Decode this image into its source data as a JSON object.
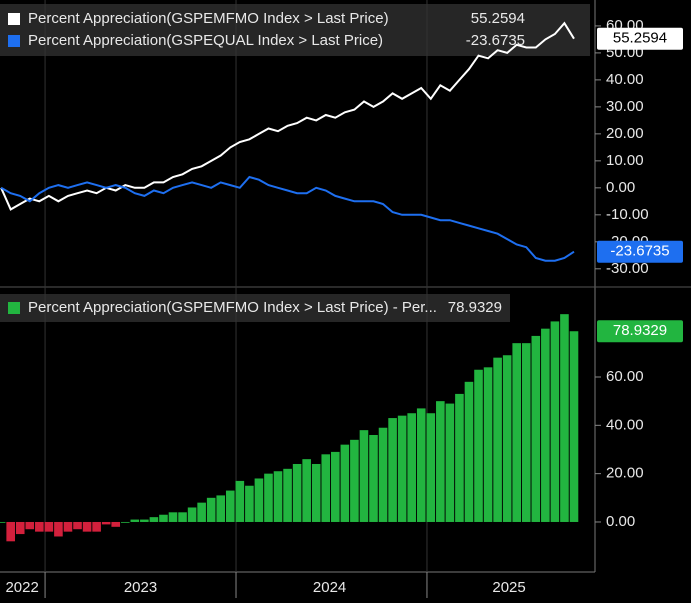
{
  "chart_data": [
    {
      "type": "line",
      "x": [
        2022.77,
        2022.82,
        2022.87,
        2022.92,
        2022.97,
        2023.02,
        2023.07,
        2023.12,
        2023.17,
        2023.22,
        2023.27,
        2023.32,
        2023.37,
        2023.42,
        2023.47,
        2023.52,
        2023.57,
        2023.62,
        2023.67,
        2023.72,
        2023.77,
        2023.82,
        2023.87,
        2023.92,
        2023.97,
        2024.02,
        2024.07,
        2024.12,
        2024.17,
        2024.22,
        2024.27,
        2024.32,
        2024.37,
        2024.42,
        2024.47,
        2024.52,
        2024.57,
        2024.62,
        2024.67,
        2024.72,
        2024.77,
        2024.82,
        2024.87,
        2024.92,
        2024.97,
        2025.02,
        2025.07,
        2025.12,
        2025.17,
        2025.22,
        2025.27,
        2025.32,
        2025.37,
        2025.42,
        2025.47,
        2025.52,
        2025.57,
        2025.62,
        2025.67,
        2025.72,
        2025.77
      ],
      "xlim": [
        2022.764,
        2025.88
      ],
      "xticks": [
        2023,
        2024,
        2025
      ],
      "xlabels": [
        {
          "value": 2022.88,
          "label": "2022"
        },
        {
          "value": 2023.5,
          "label": "2023"
        },
        {
          "value": 2024.49,
          "label": "2024"
        },
        {
          "value": 2025.43,
          "label": "2025"
        }
      ],
      "ylim": [
        -36,
        69.6
      ],
      "yticks": [
        {
          "value": 60,
          "label": "60.00"
        },
        {
          "value": 50,
          "label": "50.00"
        },
        {
          "value": 40,
          "label": "40.00"
        },
        {
          "value": 30,
          "label": "30.00"
        },
        {
          "value": 20,
          "label": "20.00"
        },
        {
          "value": 10,
          "label": "10.00"
        },
        {
          "value": 0,
          "label": "0.00"
        },
        {
          "value": -10,
          "label": "-10.00"
        },
        {
          "value": -20,
          "label": "-20.00"
        },
        {
          "value": -30,
          "label": "-30.00"
        }
      ],
      "series": [
        {
          "name": "Percent Appreciation(GSPEMFMO Index > Last Price)",
          "color": "#ffffff",
          "values": [
            0,
            -8,
            -6,
            -4,
            -5,
            -3,
            -5,
            -3,
            -2,
            -1,
            -2,
            0,
            -1,
            1,
            0,
            0,
            2,
            2,
            4,
            5,
            7,
            8,
            10,
            12,
            15,
            17,
            18,
            20,
            22,
            21,
            23,
            24,
            26,
            25,
            27,
            26,
            28,
            29,
            32,
            30,
            32,
            35,
            33,
            35,
            37,
            33,
            38,
            36,
            40,
            44,
            49,
            48,
            51,
            50,
            53,
            52,
            52,
            55,
            57,
            61,
            55.2594
          ]
        },
        {
          "name": "Percent Appreciation(GSPEQUAL Index > Last Price)",
          "color": "#1e6ff0",
          "values": [
            0,
            -2,
            -3,
            -5,
            -2,
            0,
            1,
            0,
            1,
            2,
            1,
            0,
            1,
            0,
            -2,
            -3,
            -1,
            -2,
            0,
            1,
            2,
            1,
            0,
            2,
            1,
            0,
            4,
            3,
            1,
            0,
            -1,
            -2,
            -2,
            0,
            -1,
            -3,
            -4,
            -5,
            -5,
            -5,
            -6,
            -9,
            -10,
            -10,
            -10,
            -11,
            -12,
            -12,
            -13,
            -14,
            -15,
            -16,
            -17,
            -19,
            -21,
            -22,
            -26,
            -27,
            -27,
            -26,
            -23.6735
          ]
        }
      ]
    },
    {
      "type": "bar",
      "ylim": [
        -20.7,
        96
      ],
      "yticks": [
        {
          "value": 60,
          "label": "60.00"
        },
        {
          "value": 40,
          "label": "40.00"
        },
        {
          "value": 20,
          "label": "20.00"
        },
        {
          "value": 0,
          "label": "0.00"
        }
      ],
      "series": [
        {
          "name": "Percent Appreciation(GSPEMFMO Index > Last Price) - Per...",
          "color": "#22b540",
          "negative_color": "#d3203c",
          "values": [
            0,
            -8,
            -5,
            -3,
            -4,
            -4,
            -6,
            -4,
            -3,
            -4,
            -4,
            -1,
            -2,
            0,
            1,
            1,
            2,
            3,
            4,
            4,
            6,
            8,
            10,
            11,
            13,
            17,
            15,
            18,
            20,
            21,
            22,
            24,
            26,
            24,
            28,
            29,
            32,
            34,
            38,
            36,
            39,
            43,
            44,
            45,
            47,
            45,
            50,
            49,
            53,
            58,
            63,
            64,
            68,
            69,
            74,
            74,
            77,
            80,
            83,
            86,
            78.9329
          ]
        }
      ]
    }
  ]
}
